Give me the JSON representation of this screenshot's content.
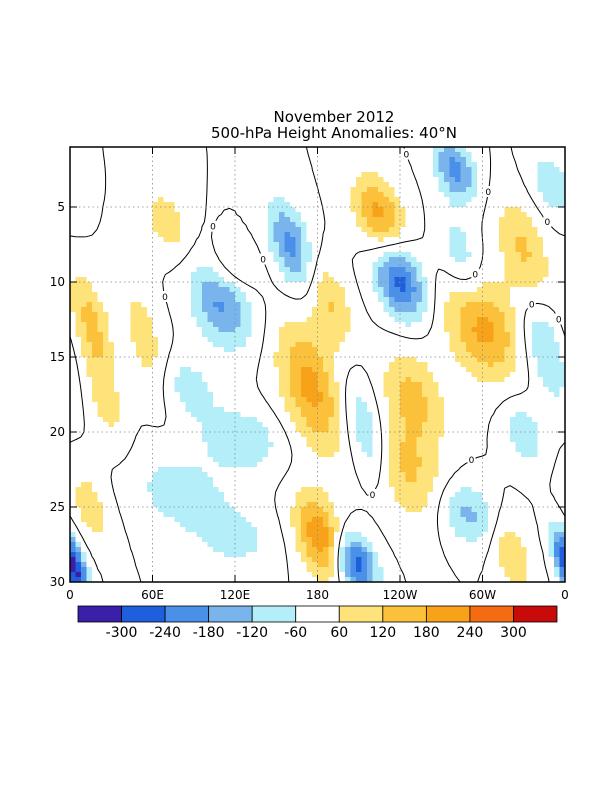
{
  "chart_data": {
    "type": "heatmap",
    "title_lines": [
      "November 2012",
      "500-hPa Height Anomalies: 40°N"
    ],
    "xlabel": "",
    "ylabel": "",
    "x_ticks": [
      "0",
      "60E",
      "120E",
      "180",
      "120W",
      "60W",
      "0"
    ],
    "x_tick_values": [
      0,
      60,
      120,
      180,
      240,
      300,
      360
    ],
    "y_ticks": [
      "5",
      "10",
      "15",
      "20",
      "25",
      "30"
    ],
    "y_tick_values": [
      5,
      10,
      15,
      20,
      25,
      30
    ],
    "xlim": [
      0,
      360
    ],
    "ylim": [
      1,
      30
    ],
    "y_inverted": true,
    "grid": "dotted",
    "contour_label": "0",
    "colorbar": {
      "labels": [
        "-300",
        "-240",
        "-180",
        "-120",
        "-60",
        "60",
        "120",
        "180",
        "240",
        "300"
      ],
      "bounds": [
        -300,
        -240,
        -180,
        -120,
        -60,
        60,
        120,
        180,
        240,
        300
      ],
      "colors": [
        "#3a1fa8",
        "#1f5fdd",
        "#4a90e8",
        "#79b4ec",
        "#b4eef8",
        "#ffffff",
        "#fde37a",
        "#fbc13a",
        "#f8a21a",
        "#f46b12",
        "#c80a0a"
      ]
    },
    "anomalies": [
      {
        "lon": 70,
        "day": 6.0,
        "value": 100,
        "lon_spread": 10,
        "day_spread": 1.6
      },
      {
        "lon": 15,
        "day": 12.5,
        "value": 130,
        "lon_spread": 9,
        "day_spread": 2.2
      },
      {
        "lon": 25,
        "day": 17.5,
        "value": 90,
        "lon_spread": 9,
        "day_spread": 2.5
      },
      {
        "lon": 55,
        "day": 14.0,
        "value": 90,
        "lon_spread": 10,
        "day_spread": 3.0
      },
      {
        "lon": 15,
        "day": 25.0,
        "value": 90,
        "lon_spread": 10,
        "day_spread": 2.0
      },
      {
        "lon": 5,
        "day": 29.3,
        "value": -260,
        "lon_spread": 6,
        "day_spread": 1.6
      },
      {
        "lon": 175,
        "day": 17.0,
        "value": 200,
        "lon_spread": 15,
        "day_spread": 3.0
      },
      {
        "lon": 190,
        "day": 11.5,
        "value": 120,
        "lon_spread": 10,
        "day_spread": 2.0
      },
      {
        "lon": 182,
        "day": 27.0,
        "value": 230,
        "lon_spread": 12,
        "day_spread": 2.0
      },
      {
        "lon": 225,
        "day": 5.5,
        "value": 200,
        "lon_spread": 12,
        "day_spread": 1.8
      },
      {
        "lon": 300,
        "day": 13.0,
        "value": 200,
        "lon_spread": 18,
        "day_spread": 2.5
      },
      {
        "lon": 250,
        "day": 17.5,
        "value": 130,
        "lon_spread": 15,
        "day_spread": 2.2
      },
      {
        "lon": 245,
        "day": 22.5,
        "value": 130,
        "lon_spread": 18,
        "day_spread": 2.5
      },
      {
        "lon": 330,
        "day": 8.0,
        "value": 130,
        "lon_spread": 12,
        "day_spread": 2.5
      },
      {
        "lon": 320,
        "day": 28.0,
        "value": 110,
        "lon_spread": 10,
        "day_spread": 2.0
      },
      {
        "lon": 120,
        "day": 9.0,
        "value": 90,
        "lon_spread": 12,
        "day_spread": 1.2
      },
      {
        "lon": 160,
        "day": 7.5,
        "value": -200,
        "lon_spread": 10,
        "day_spread": 2.0
      },
      {
        "lon": 110,
        "day": 11.5,
        "value": -190,
        "lon_spread": 15,
        "day_spread": 2.0
      },
      {
        "lon": 85,
        "day": 17.0,
        "value": -90,
        "lon_spread": 15,
        "day_spread": 1.5
      },
      {
        "lon": 125,
        "day": 20.5,
        "value": -110,
        "lon_spread": 20,
        "day_spread": 1.5
      },
      {
        "lon": 80,
        "day": 24.0,
        "value": -90,
        "lon_spread": 25,
        "day_spread": 2.0
      },
      {
        "lon": 120,
        "day": 27.0,
        "value": -80,
        "lon_spread": 20,
        "day_spread": 1.5
      },
      {
        "lon": 215,
        "day": 20.0,
        "value": -140,
        "lon_spread": 10,
        "day_spread": 2.5
      },
      {
        "lon": 208,
        "day": 28.8,
        "value": -280,
        "lon_spread": 10,
        "day_spread": 1.5
      },
      {
        "lon": 240,
        "day": 10.0,
        "value": -260,
        "lon_spread": 12,
        "day_spread": 1.8
      },
      {
        "lon": 280,
        "day": 2.5,
        "value": -200,
        "lon_spread": 10,
        "day_spread": 1.5
      },
      {
        "lon": 285,
        "day": 8.5,
        "value": -110,
        "lon_spread": 10,
        "day_spread": 2.0
      },
      {
        "lon": 350,
        "day": 3.5,
        "value": -110,
        "lon_spread": 10,
        "day_spread": 1.5
      },
      {
        "lon": 345,
        "day": 14.5,
        "value": -130,
        "lon_spread": 10,
        "day_spread": 2.5
      },
      {
        "lon": 330,
        "day": 20.0,
        "value": -110,
        "lon_spread": 10,
        "day_spread": 1.5
      },
      {
        "lon": 290,
        "day": 25.5,
        "value": -140,
        "lon_spread": 15,
        "day_spread": 1.5
      },
      {
        "lon": 357,
        "day": 28.0,
        "value": -130,
        "lon_spread": 5,
        "day_spread": 1.5
      }
    ]
  }
}
